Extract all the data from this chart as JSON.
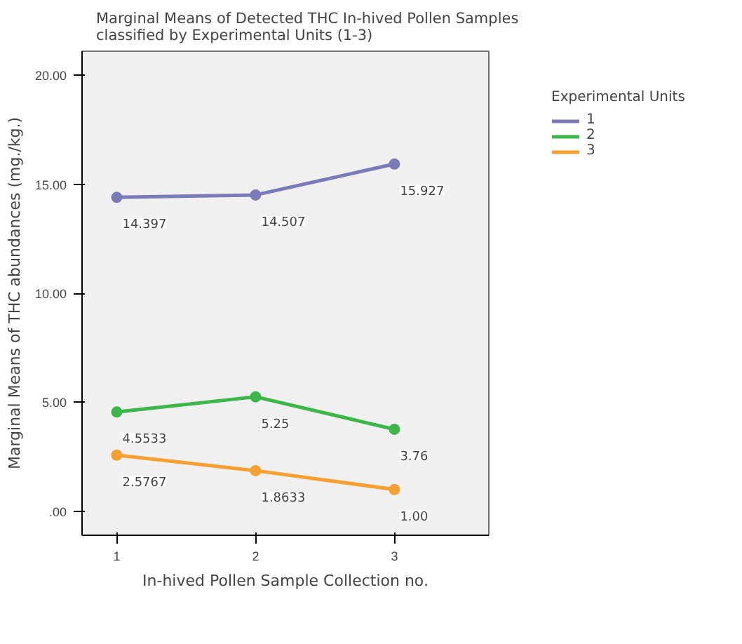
{
  "chart_data": {
    "type": "line",
    "title": "Marginal Means of Detected THC In-hived Pollen Samples classified by Experimental Units (1-3)",
    "xlabel": "In-hived Pollen Sample Collection no.",
    "ylabel": "Marginal Means of THC abundances (mg./kg.)",
    "legend_title": "Experimental Units",
    "x": [
      1,
      2,
      3
    ],
    "xlim": [
      0.75,
      3.68
    ],
    "xticks": [
      1,
      2,
      3
    ],
    "ylim": [
      -1.1,
      21.1
    ],
    "yticks": [
      {
        "value": 0,
        "label": ".00"
      },
      {
        "value": 5,
        "label": "5.00"
      },
      {
        "value": 10,
        "label": "10.00"
      },
      {
        "value": 15,
        "label": "15.00"
      },
      {
        "value": 20,
        "label": "20.00"
      }
    ],
    "series": [
      {
        "name": "1",
        "color": "#7a7ab8",
        "values": [
          14.397,
          14.507,
          15.927
        ],
        "value_labels": [
          "14.397",
          "14.507",
          "15.927"
        ]
      },
      {
        "name": "2",
        "color": "#3cb648",
        "values": [
          4.5533,
          5.25,
          3.76
        ],
        "value_labels": [
          "4.5533",
          "5.25",
          "3.76"
        ]
      },
      {
        "name": "3",
        "color": "#f5a030",
        "values": [
          2.5767,
          1.8633,
          1.0
        ],
        "value_labels": [
          "2.5767",
          "1.8633",
          "1.00"
        ]
      }
    ],
    "marker": "circle",
    "line_style": "solid",
    "grid": false,
    "legend": "right"
  }
}
